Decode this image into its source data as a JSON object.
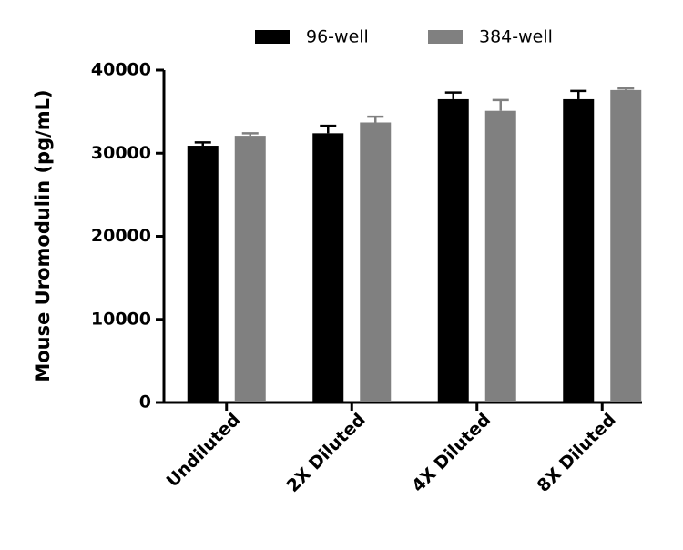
{
  "chart_data": {
    "type": "bar",
    "y_label": "Mouse Uromodulin (pg/mL)",
    "categories": [
      "Undiluted",
      "2X Diluted",
      "4X Diluted",
      "8X Diluted"
    ],
    "series": [
      {
        "name": "96-well",
        "color": "#000000",
        "values": [
          30900,
          32400,
          36500,
          36500
        ],
        "errors": [
          400,
          900,
          800,
          1000
        ]
      },
      {
        "name": "384-well",
        "color": "#808080",
        "values": [
          32100,
          33700,
          35100,
          37600
        ],
        "errors": [
          300,
          700,
          1300,
          200
        ]
      }
    ],
    "ylim": [
      0,
      40000
    ],
    "yticks": [
      0,
      10000,
      20000,
      30000,
      40000
    ],
    "grid": false
  }
}
